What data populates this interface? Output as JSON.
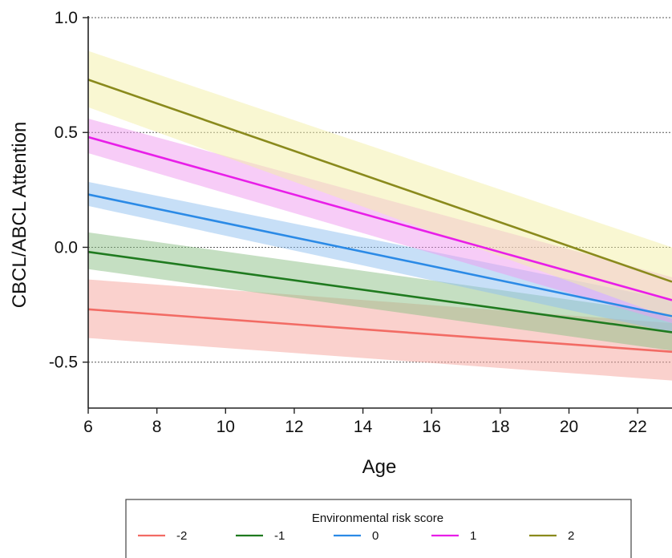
{
  "chart_data": {
    "type": "line",
    "xlabel": "Age",
    "ylabel": "CBCL/ABCL Attention",
    "xlim": [
      6,
      23
    ],
    "ylim": [
      -0.7,
      1.0
    ],
    "x_ticks": [
      "6",
      "8",
      "10",
      "12",
      "14",
      "16",
      "18",
      "20",
      "22"
    ],
    "y_ticks": [
      "1.0",
      "0.5",
      "0.0",
      "-0.5"
    ],
    "y_gridlines": [
      1.0,
      0.5,
      0.0,
      -0.5
    ],
    "grid": "dotted horizontal",
    "legend": {
      "title": "Environmental risk score",
      "placement": "bottom"
    },
    "series": [
      {
        "name": "-2",
        "color": "#f26b64",
        "band_color": "#f5a39c",
        "x": [
          6,
          23
        ],
        "y": [
          -0.27,
          -0.455
        ],
        "lower": [
          -0.395,
          -0.58
        ],
        "upper": [
          -0.14,
          -0.33
        ]
      },
      {
        "name": "-1",
        "color": "#1f7a1f",
        "band_color": "#8cbf86",
        "x": [
          6,
          23
        ],
        "y": [
          -0.02,
          -0.37
        ],
        "lower": [
          -0.095,
          -0.45
        ],
        "upper": [
          0.065,
          -0.29
        ]
      },
      {
        "name": "0",
        "color": "#2b8ae6",
        "band_color": "#8fc0ef",
        "x": [
          6,
          23
        ],
        "y": [
          0.23,
          -0.3
        ],
        "lower": [
          0.18,
          -0.37
        ],
        "upper": [
          0.285,
          -0.23
        ]
      },
      {
        "name": "1",
        "color": "#e81ee8",
        "band_color": "#f099f0",
        "x": [
          6,
          23
        ],
        "y": [
          0.48,
          -0.23
        ],
        "lower": [
          0.41,
          -0.33
        ],
        "upper": [
          0.56,
          -0.13
        ]
      },
      {
        "name": "2",
        "color": "#8a8a1c",
        "band_color": "#f3f0a6",
        "x": [
          6,
          23
        ],
        "y": [
          0.73,
          -0.15
        ],
        "lower": [
          0.61,
          -0.31
        ],
        "upper": [
          0.855,
          0.0
        ]
      }
    ]
  }
}
